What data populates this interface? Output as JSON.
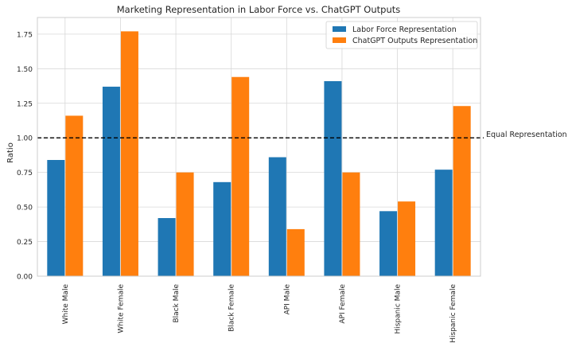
{
  "chart_data": {
    "type": "bar",
    "title": "Marketing Representation in Labor Force vs. ChatGPT Outputs",
    "xlabel": "",
    "ylabel": "Ratio",
    "ylim": [
      0,
      1.87
    ],
    "yticks": [
      0.0,
      0.25,
      0.5,
      0.75,
      1.0,
      1.25,
      1.5,
      1.75
    ],
    "ytick_labels": [
      "0.00",
      "0.25",
      "0.50",
      "0.75",
      "1.00",
      "1.25",
      "1.50",
      "1.75"
    ],
    "grid": true,
    "legend_position": "top-right",
    "categories": [
      "White Male",
      "White Female",
      "Black Male",
      "Black Female",
      "API Male",
      "API Female",
      "Hispanic Male",
      "Hispanic Female"
    ],
    "series": [
      {
        "name": "Labor Force Representation",
        "color": "#1f77b4",
        "values": [
          0.84,
          1.37,
          0.42,
          0.68,
          0.86,
          1.41,
          0.47,
          0.77
        ]
      },
      {
        "name": "ChatGPT Outputs Representation",
        "color": "#ff7f0e",
        "values": [
          1.16,
          1.77,
          0.75,
          1.44,
          0.34,
          0.75,
          0.54,
          1.23
        ]
      }
    ],
    "reference_line": {
      "value": 1.0,
      "label": "Equal Representation",
      "style": "dashed",
      "color": "#000000"
    }
  }
}
